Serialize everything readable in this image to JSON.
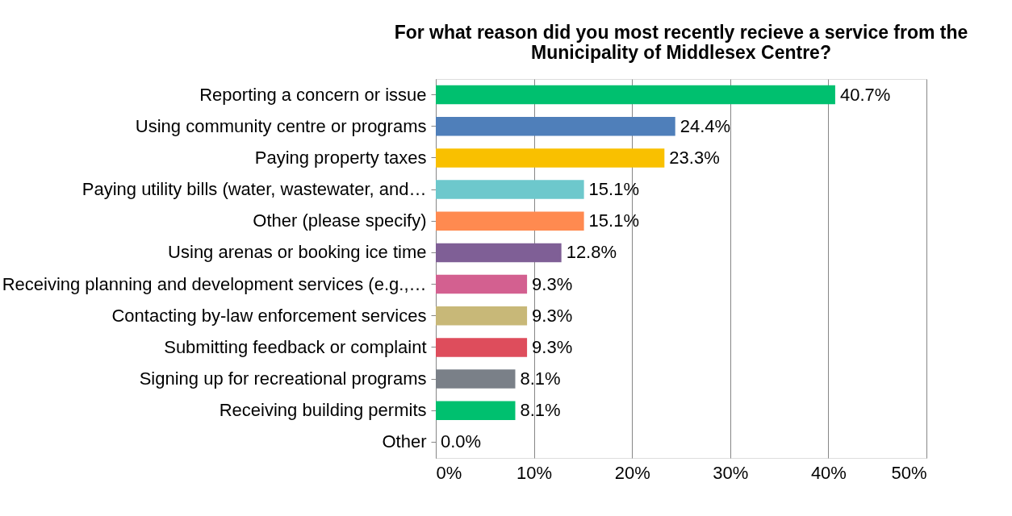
{
  "chart_data": {
    "type": "bar",
    "orientation": "horizontal",
    "title": "For what reason did you most recently recieve a service from the\nMunicipality of Middlesex Centre?",
    "categories": [
      "Reporting a concern or issue",
      "Using community centre or programs",
      "Paying property taxes",
      "Paying utility bills (water, wastewater, and…",
      "Other (please specify)",
      "Using arenas or booking ice time",
      "Receiving planning and development services (e.g.,…",
      "Contacting by-law enforcement services",
      "Submitting feedback or complaint",
      "Signing up for recreational programs",
      "Receiving building permits",
      "Other"
    ],
    "values": [
      40.7,
      24.4,
      23.3,
      15.1,
      15.1,
      12.8,
      9.3,
      9.3,
      9.3,
      8.1,
      8.1,
      0.0
    ],
    "value_labels": [
      "40.7%",
      "24.4%",
      "23.3%",
      "15.1%",
      "15.1%",
      "12.8%",
      "9.3%",
      "9.3%",
      "9.3%",
      "8.1%",
      "8.1%",
      "0.0%"
    ],
    "colors": [
      "#00c06f",
      "#4f7fba",
      "#f9c000",
      "#6dc8cc",
      "#ff8a50",
      "#7f5f96",
      "#d36090",
      "#c8b878",
      "#de4d5c",
      "#7a8088",
      "#00c06f",
      "#00c06f"
    ],
    "xlim": [
      0,
      50
    ],
    "xticks": [
      {
        "value": 0,
        "label": "0%"
      },
      {
        "value": 10,
        "label": "10%"
      },
      {
        "value": 20,
        "label": "20%"
      },
      {
        "value": 30,
        "label": "30%"
      },
      {
        "value": 40,
        "label": "40%"
      },
      {
        "value": 50,
        "label": "50%"
      }
    ],
    "grid": "x"
  }
}
